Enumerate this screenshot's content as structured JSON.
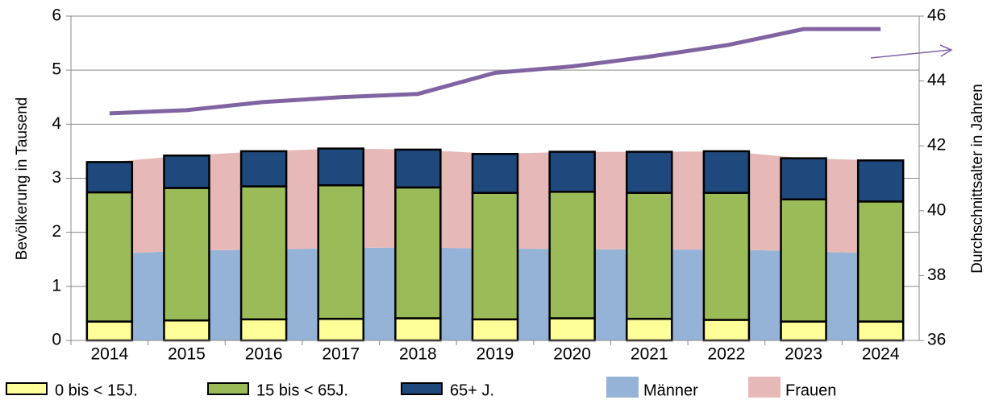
{
  "chart_data": {
    "type": "stacked_bar_area_line",
    "ylabel": "Bevölkerung in Tausend",
    "y2label": "Durchschnittsalter in Jahren",
    "categories": [
      "2014",
      "2015",
      "2016",
      "2017",
      "2018",
      "2019",
      "2020",
      "2021",
      "2022",
      "2023",
      "2024"
    ],
    "ylim": [
      0,
      6
    ],
    "yticks": [
      0,
      1,
      2,
      3,
      4,
      5,
      6
    ],
    "y2lim": [
      36,
      46
    ],
    "y2ticks": [
      36,
      38,
      40,
      42,
      44,
      46
    ],
    "grid": true,
    "areas": [
      {
        "name": "Männer",
        "color": "#95b3d7",
        "values": [
          1.6,
          1.66,
          1.68,
          1.71,
          1.72,
          1.7,
          1.69,
          1.68,
          1.68,
          1.65,
          1.61
        ]
      },
      {
        "name": "Frauen",
        "color": "#e6b9b8",
        "values": [
          1.7,
          1.76,
          1.82,
          1.84,
          1.81,
          1.75,
          1.8,
          1.81,
          1.82,
          1.72,
          1.72
        ]
      }
    ],
    "series": [
      {
        "name": "0 bis < 15J.",
        "color": "#ffff99",
        "values": [
          0.35,
          0.37,
          0.39,
          0.4,
          0.41,
          0.39,
          0.41,
          0.4,
          0.38,
          0.35,
          0.35
        ]
      },
      {
        "name": "15 bis < 65J.",
        "color": "#9bbb59",
        "values": [
          2.39,
          2.45,
          2.46,
          2.47,
          2.42,
          2.34,
          2.34,
          2.33,
          2.35,
          2.26,
          2.22
        ]
      },
      {
        "name": "65+ J.",
        "color": "#1f497d",
        "values": [
          0.56,
          0.6,
          0.65,
          0.68,
          0.7,
          0.72,
          0.74,
          0.76,
          0.77,
          0.76,
          0.76
        ]
      }
    ],
    "line": {
      "color": "#8064a2",
      "axis": "y2",
      "values": [
        43.0,
        43.1,
        43.35,
        43.5,
        43.6,
        44.25,
        44.45,
        44.75,
        45.1,
        45.6,
        45.6
      ]
    }
  }
}
